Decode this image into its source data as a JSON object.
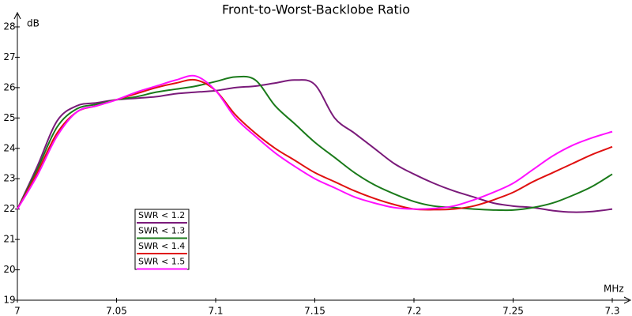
{
  "chart_data": {
    "type": "line",
    "title": "Front-to-Worst-Backlobe Ratio",
    "y_label": "dB",
    "x_label": "MHz",
    "x": [
      7.0,
      7.01,
      7.02,
      7.03,
      7.04,
      7.05,
      7.06,
      7.07,
      7.08,
      7.09,
      7.1,
      7.11,
      7.12,
      7.13,
      7.14,
      7.15,
      7.16,
      7.17,
      7.18,
      7.19,
      7.2,
      7.21,
      7.22,
      7.23,
      7.24,
      7.25,
      7.26,
      7.27,
      7.28,
      7.29,
      7.3
    ],
    "series": [
      {
        "name": "SWR < 1.2",
        "color": "#7a1a7a",
        "values": [
          22.0,
          23.4,
          24.9,
          25.4,
          25.5,
          25.6,
          25.65,
          25.7,
          25.8,
          25.85,
          25.9,
          26.0,
          26.05,
          26.15,
          26.25,
          26.1,
          25.0,
          24.5,
          24.0,
          23.5,
          23.15,
          22.85,
          22.6,
          22.4,
          22.2,
          22.1,
          22.05,
          21.95,
          21.9,
          21.92,
          22.0
        ]
      },
      {
        "name": "SWR < 1.3",
        "color": "#1a7a1a",
        "values": [
          22.0,
          23.3,
          24.7,
          25.3,
          25.45,
          25.6,
          25.7,
          25.85,
          25.95,
          26.05,
          26.2,
          26.35,
          26.25,
          25.4,
          24.8,
          24.2,
          23.7,
          23.2,
          22.8,
          22.5,
          22.25,
          22.1,
          22.05,
          22.0,
          21.97,
          21.97,
          22.05,
          22.2,
          22.45,
          22.75,
          23.15
        ]
      },
      {
        "name": "SWR < 1.4",
        "color": "#e01010",
        "values": [
          22.0,
          23.2,
          24.5,
          25.2,
          25.4,
          25.6,
          25.8,
          26.0,
          26.15,
          26.25,
          25.9,
          25.1,
          24.5,
          24.0,
          23.6,
          23.2,
          22.9,
          22.6,
          22.35,
          22.15,
          22.0,
          21.98,
          22.0,
          22.1,
          22.3,
          22.55,
          22.9,
          23.2,
          23.5,
          23.8,
          24.05
        ]
      },
      {
        "name": "SWR < 1.5",
        "color": "#ff10ff",
        "values": [
          22.0,
          23.1,
          24.4,
          25.2,
          25.4,
          25.6,
          25.85,
          26.05,
          26.25,
          26.38,
          25.9,
          25.0,
          24.4,
          23.85,
          23.4,
          23.0,
          22.7,
          22.4,
          22.2,
          22.05,
          22.0,
          22.02,
          22.1,
          22.3,
          22.55,
          22.85,
          23.3,
          23.75,
          24.1,
          24.35,
          24.55
        ]
      }
    ],
    "xlim": [
      7.0,
      7.3
    ],
    "xticks": [
      7,
      7.05,
      7.1,
      7.15,
      7.2,
      7.25,
      7.3
    ],
    "ylim": [
      19,
      28
    ],
    "yticks": [
      19,
      20,
      21,
      22,
      23,
      24,
      25,
      26,
      27,
      28
    ],
    "grid": false
  }
}
